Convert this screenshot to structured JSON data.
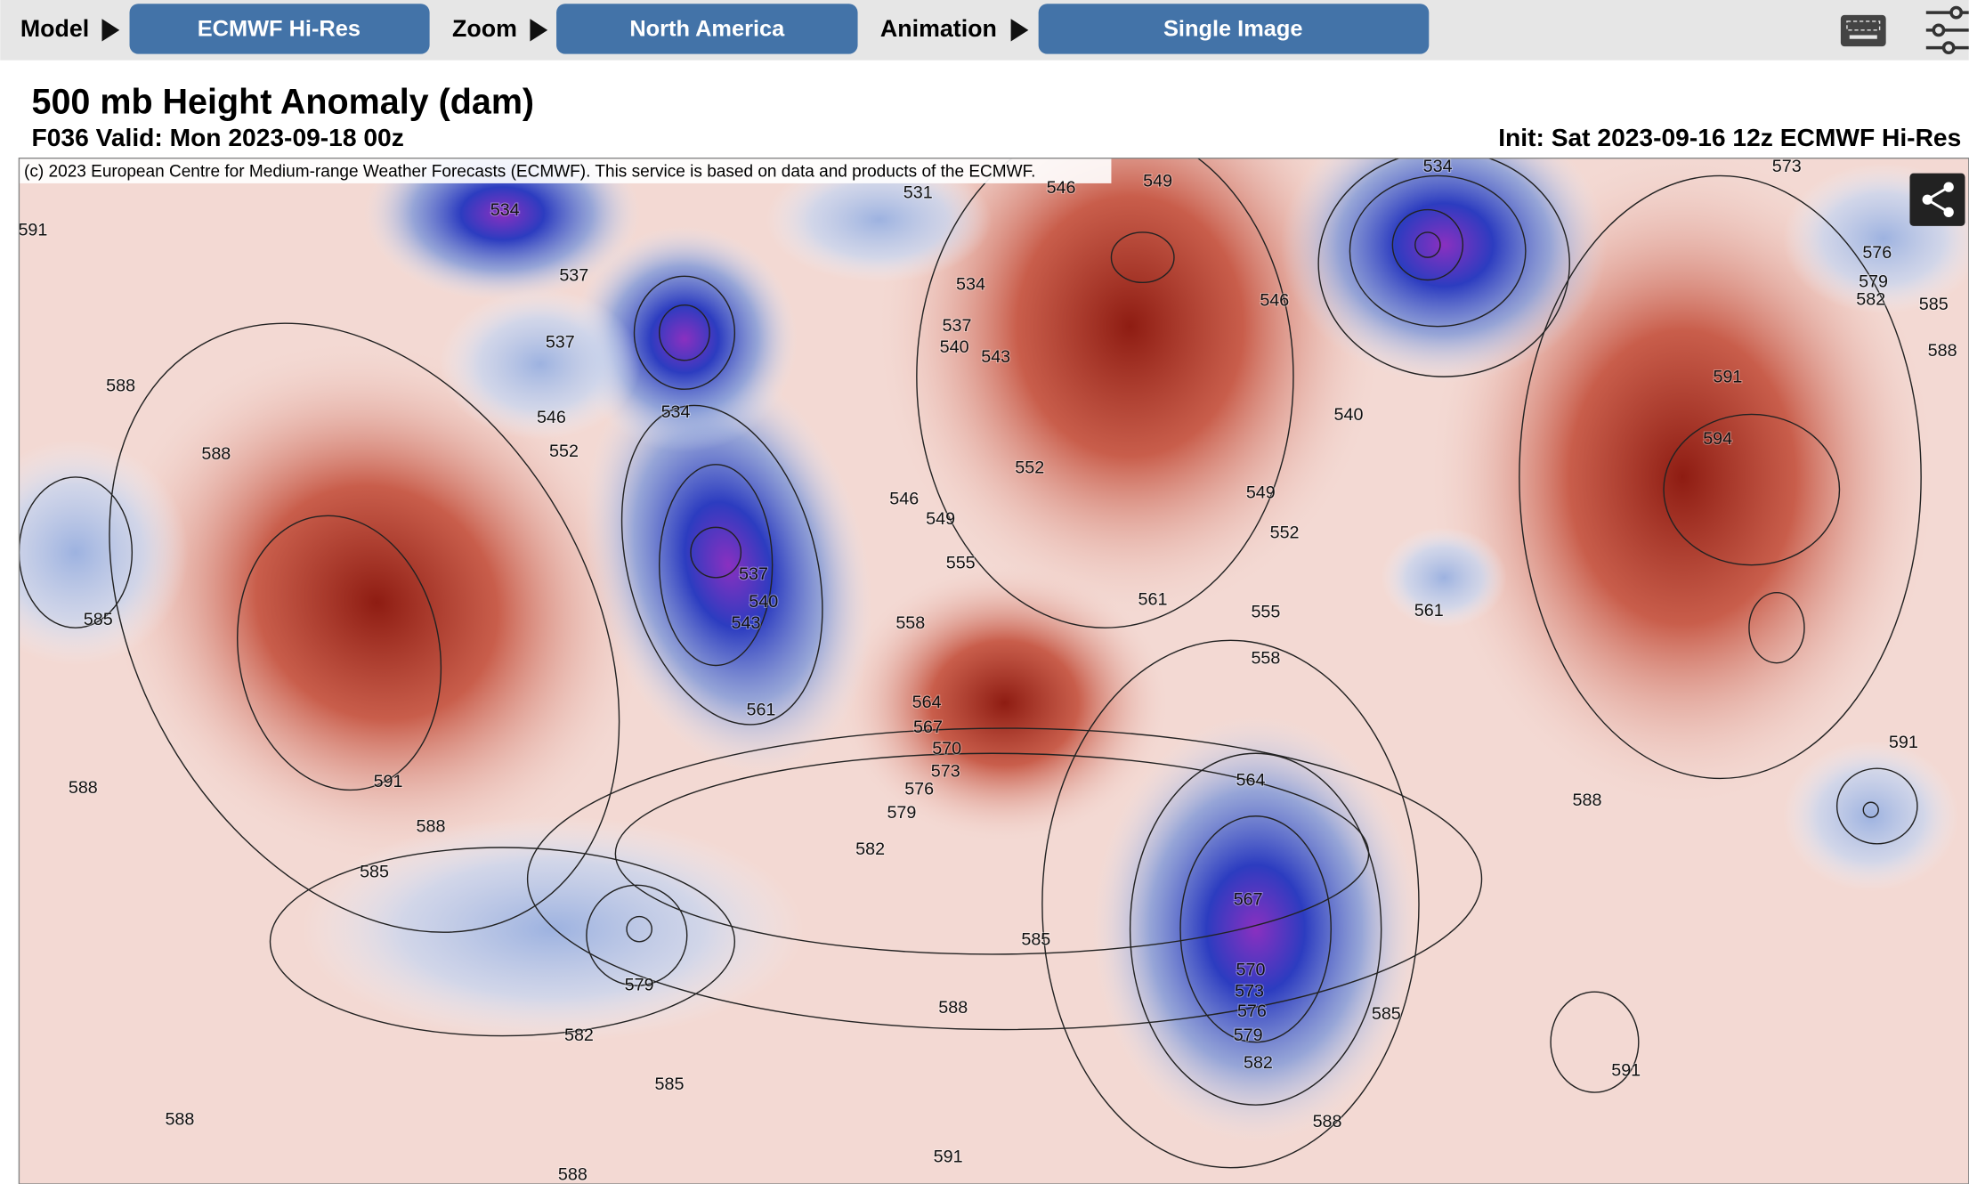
{
  "toolbar": {
    "model_label": "Model",
    "model_value": "ECMWF Hi-Res",
    "zoom_label": "Zoom",
    "zoom_value": "North America",
    "animation_label": "Animation",
    "animation_value": "Single Image"
  },
  "header": {
    "title": "500 mb Height Anomaly (dam)",
    "valid": "F036 Valid: Mon 2023-09-18 00z",
    "init": "Init: Sat 2023-09-16 12z ECMWF Hi-Res"
  },
  "map": {
    "copyright": "(c) 2023 European Centre for Medium-range Weather Forecasts (ECMWF). This service is based on data and products of the ECMWF.",
    "contour_labels": [
      591,
      534,
      531,
      546,
      549,
      534,
      573,
      537,
      534,
      546,
      576,
      579,
      582,
      585,
      537,
      537,
      540,
      543,
      588,
      588,
      534,
      540,
      591,
      546,
      552,
      588,
      594,
      552,
      546,
      549,
      549,
      552,
      555,
      537,
      540,
      543,
      561,
      555,
      561,
      585,
      558,
      558,
      561,
      564,
      567,
      570,
      573,
      576,
      591,
      564,
      579,
      591,
      588,
      588,
      588,
      582,
      585,
      567,
      585,
      570,
      579,
      573,
      588,
      576,
      585,
      582,
      579,
      582,
      591,
      585,
      588,
      588,
      591,
      588
    ]
  }
}
